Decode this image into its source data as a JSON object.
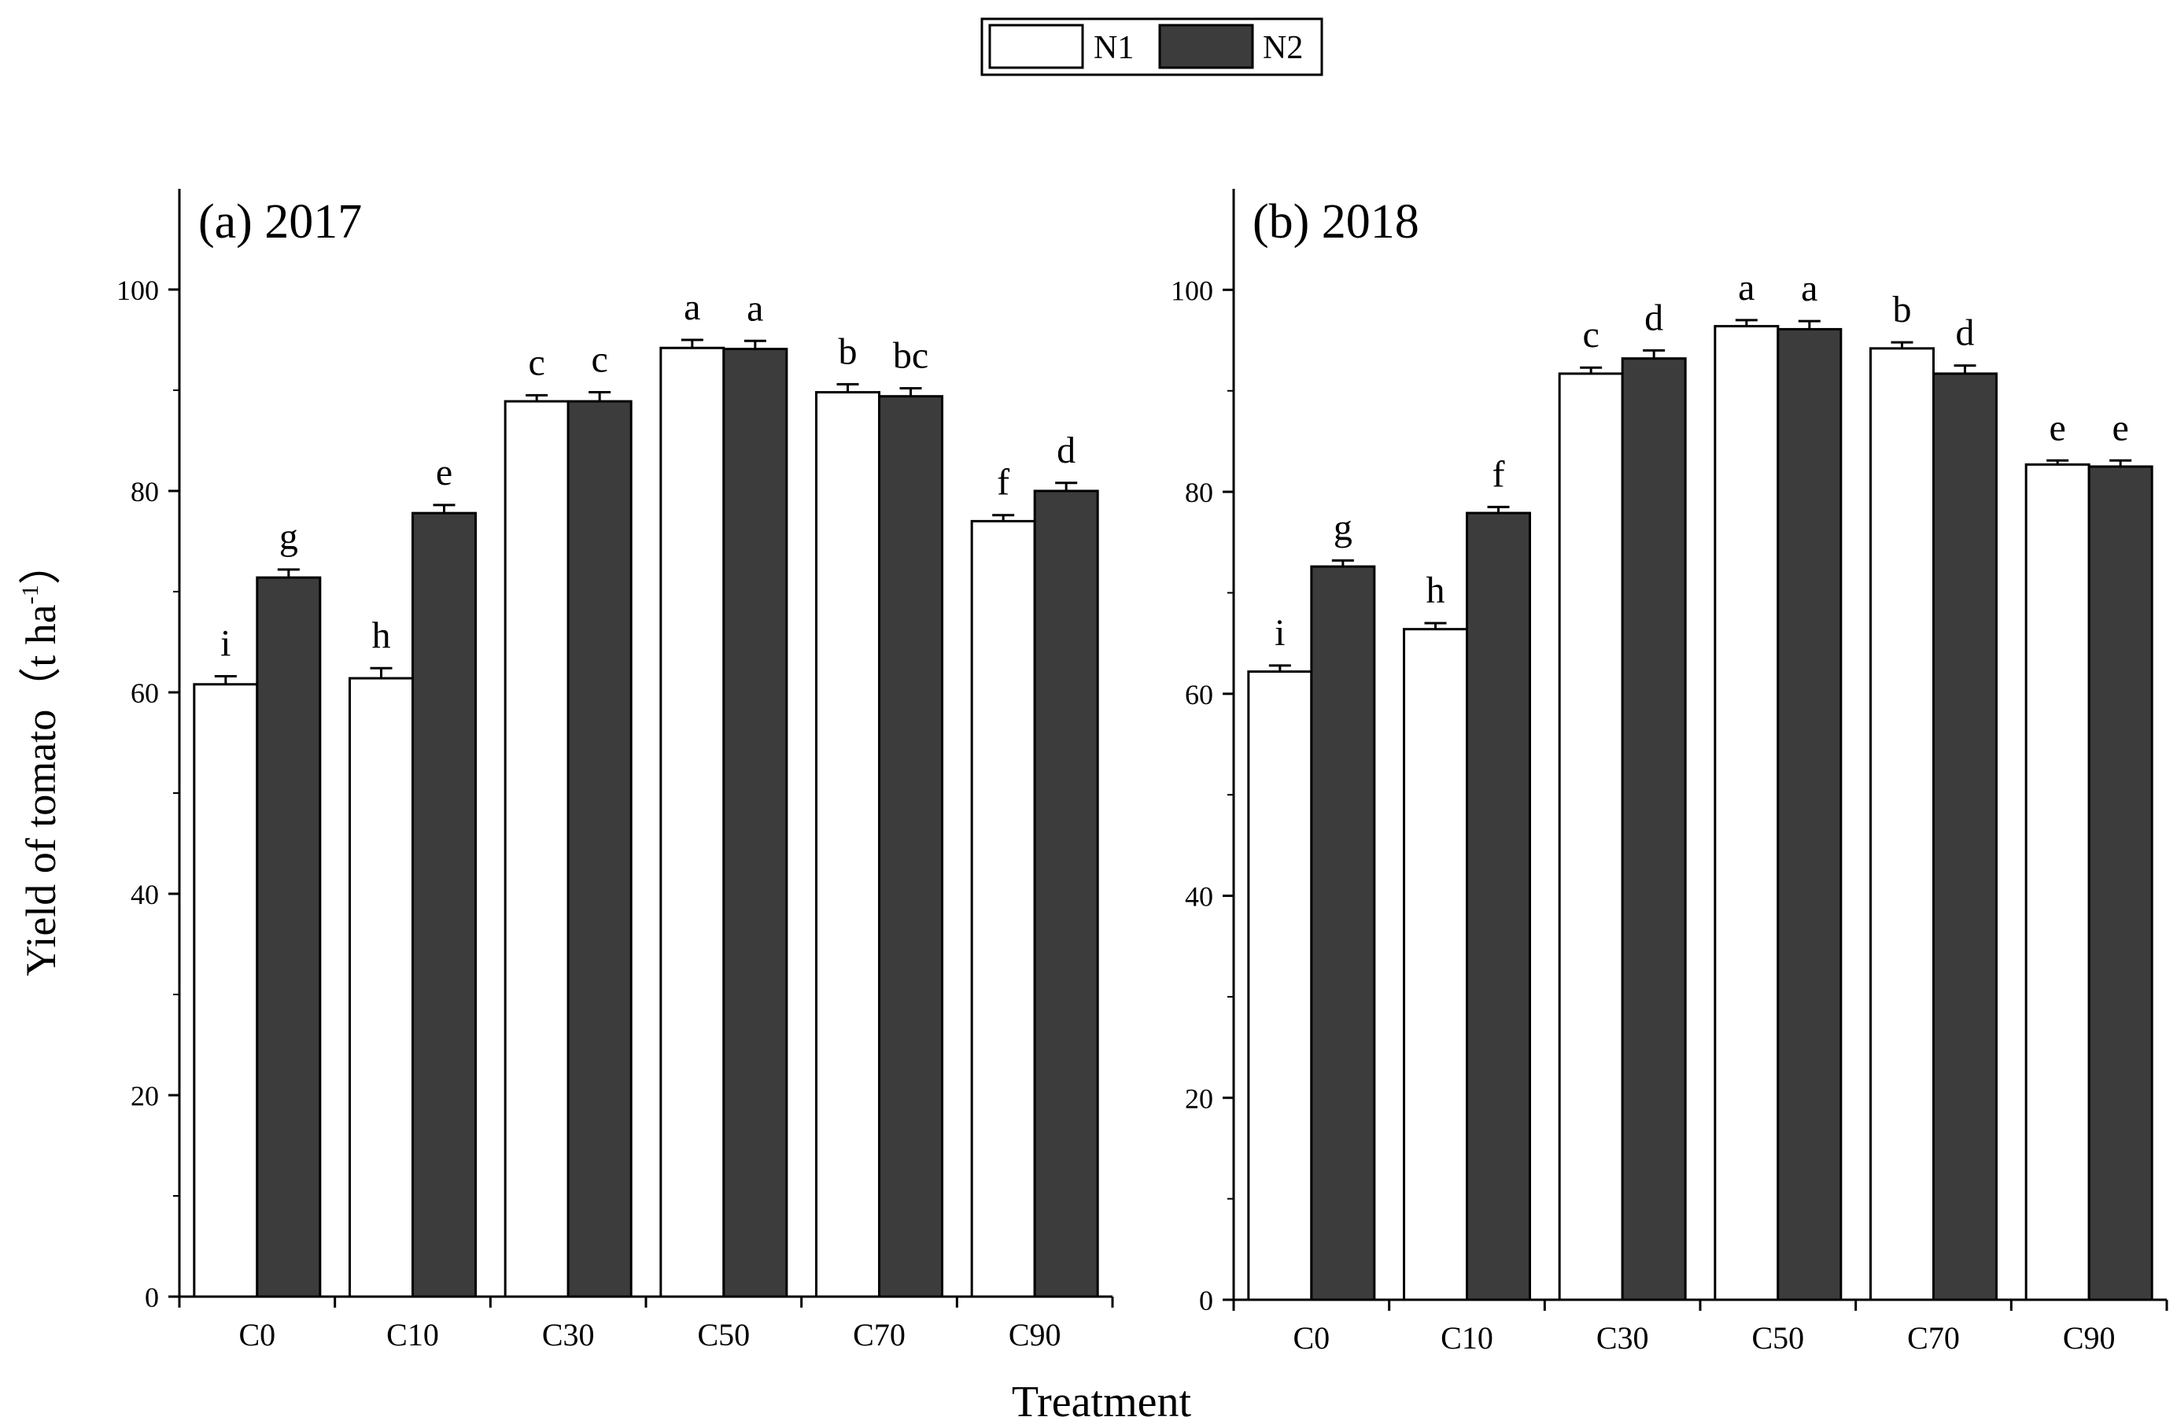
{
  "legend": {
    "series": [
      {
        "name": "N1",
        "color": "#ffffff"
      },
      {
        "name": "N2",
        "color": "#3c3c3c"
      }
    ]
  },
  "axes": {
    "ylabel": "Yield of tomato（t ha",
    "ylabel_sup": "-1",
    "ylabel_close": "）",
    "xlabel": "Treatment"
  },
  "chart_data": [
    {
      "type": "bar",
      "title": "(a) 2017",
      "categories": [
        "C0",
        "C10",
        "C30",
        "C50",
        "C70",
        "C90"
      ],
      "ylim": [
        0,
        110
      ],
      "yticks": [
        0,
        20,
        40,
        60,
        80,
        100
      ],
      "series": [
        {
          "name": "N1",
          "color": "#ffffff",
          "values": [
            60.8,
            61.4,
            88.9,
            94.2,
            89.8,
            77.0
          ],
          "errors": [
            0.8,
            1.0,
            0.6,
            0.8,
            0.8,
            0.6
          ],
          "letters": [
            "i",
            "h",
            "c",
            "a",
            "b",
            "f"
          ]
        },
        {
          "name": "N2",
          "color": "#3c3c3c",
          "values": [
            71.4,
            77.8,
            88.9,
            94.1,
            89.4,
            80.0
          ],
          "errors": [
            0.8,
            0.8,
            0.9,
            0.8,
            0.8,
            0.8
          ],
          "letters": [
            "g",
            "e",
            "c",
            "a",
            "bc",
            "d"
          ]
        }
      ]
    },
    {
      "type": "bar",
      "title": "(b) 2018",
      "categories": [
        "C0",
        "C10",
        "C30",
        "C50",
        "C70",
        "C90"
      ],
      "ylim": [
        0,
        110
      ],
      "yticks": [
        0,
        20,
        40,
        60,
        80,
        100
      ],
      "series": [
        {
          "name": "N1",
          "color": "#ffffff",
          "values": [
            62.2,
            66.4,
            91.7,
            96.4,
            94.2,
            82.7
          ],
          "errors": [
            0.6,
            0.6,
            0.6,
            0.6,
            0.6,
            0.4
          ],
          "letters": [
            "i",
            "h",
            "c",
            "a",
            "b",
            "e"
          ]
        },
        {
          "name": "N2",
          "color": "#3c3c3c",
          "values": [
            72.6,
            77.9,
            93.2,
            96.1,
            91.7,
            82.5
          ],
          "errors": [
            0.6,
            0.6,
            0.8,
            0.8,
            0.8,
            0.6
          ],
          "letters": [
            "g",
            "f",
            "d",
            "a",
            "d",
            "e"
          ]
        }
      ]
    }
  ]
}
